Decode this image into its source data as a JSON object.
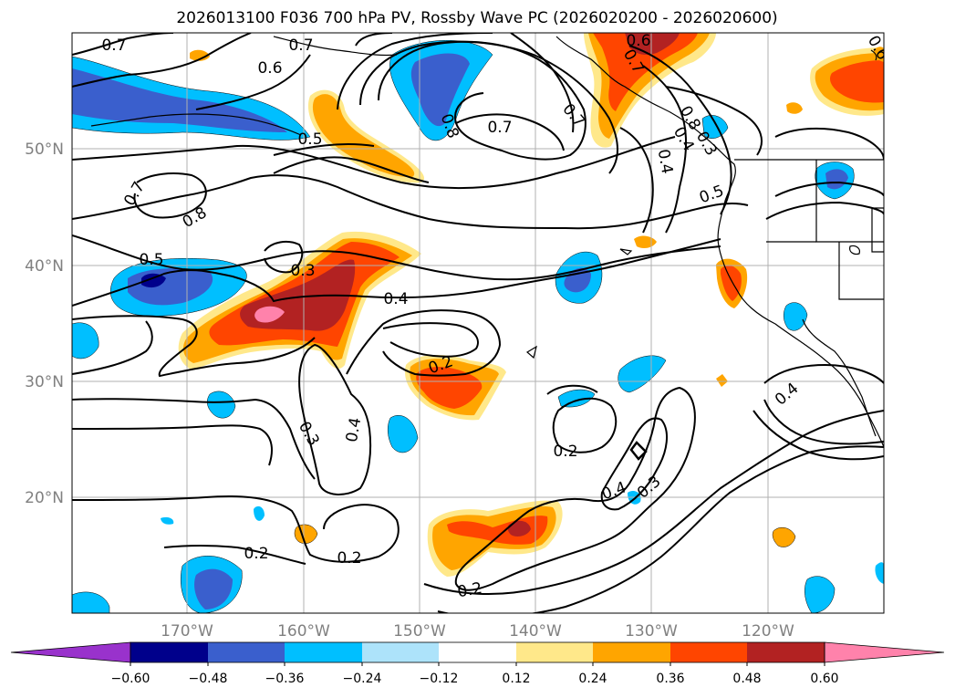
{
  "title": "2026013100 F036 700 hPa PV, Rossby Wave PC (2026020200 - 2026020600)",
  "lat_labels": [
    "50°N",
    "40°N",
    "30°N",
    "20°N"
  ],
  "lon_labels": [
    "170°W",
    "160°W",
    "150°W",
    "140°W",
    "130°W",
    "120°W"
  ],
  "colorbar": {
    "colors": [
      "#9932CC",
      "#00008B",
      "#3A5FCD",
      "#00BFFF",
      "#ADE3FA",
      "#FFFFFF",
      "#FFE88A",
      "#FFA500",
      "#FF4500",
      "#B22222",
      "#FF82AB"
    ],
    "labels": [
      "−0.60",
      "−0.48",
      "−0.36",
      "−0.24",
      "−0.12",
      "0.12",
      "0.24",
      "0.36",
      "0.48",
      "0.60"
    ]
  },
  "contour_labels": [
    "0.7",
    "0.7",
    "0.6",
    "0.6",
    "0.8",
    "0.7",
    "0.7",
    "0.5",
    "0.6",
    "0.8",
    "0.4",
    "0.5",
    "0.7",
    "0.8",
    "0.5",
    "0.3",
    "0.4",
    "0.2",
    "0.3",
    "0.4",
    "0.2",
    "0.4",
    "0.3",
    "0.4",
    "0.2",
    "0.2",
    "0.2",
    "0.7",
    "0.4",
    "0.3"
  ]
}
